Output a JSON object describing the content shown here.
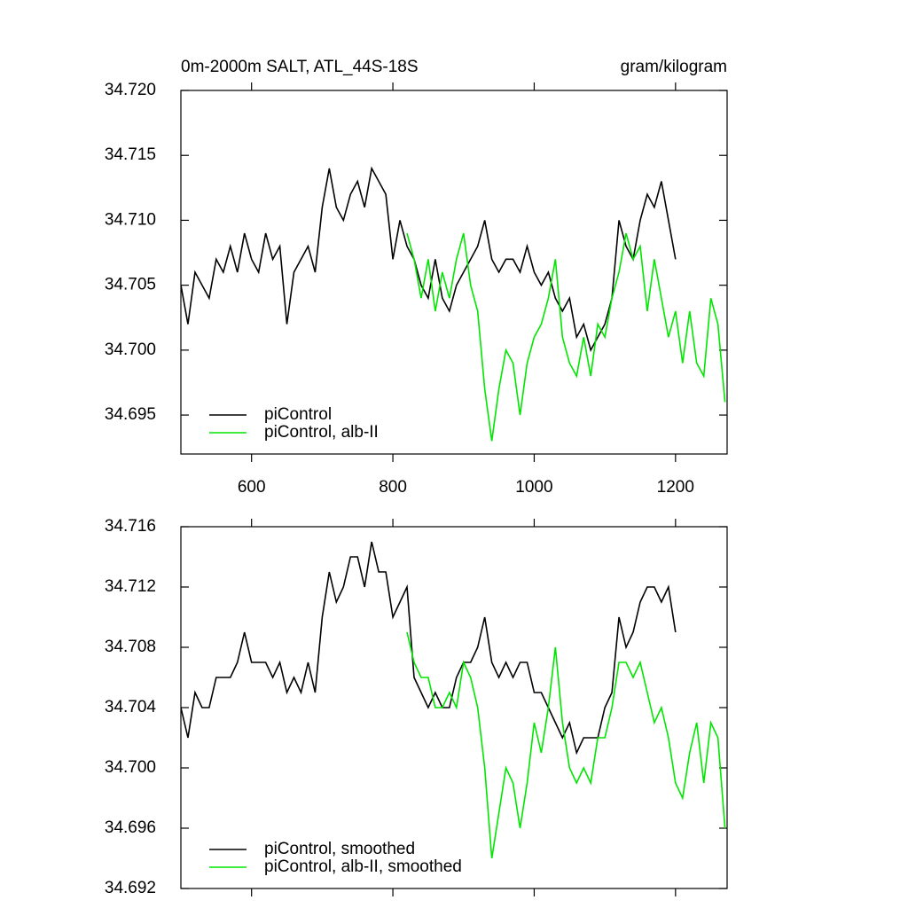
{
  "chart_data": [
    {
      "type": "line",
      "title": "0m-2000m SALT, ATL_44S-18S",
      "units": "gram/kilogram",
      "x": [
        500,
        510,
        520,
        530,
        540,
        550,
        560,
        570,
        580,
        590,
        600,
        610,
        620,
        630,
        640,
        650,
        660,
        670,
        680,
        690,
        700,
        710,
        720,
        730,
        740,
        750,
        760,
        770,
        780,
        790,
        800,
        810,
        820,
        830,
        840,
        850,
        860,
        870,
        880,
        890,
        900,
        910,
        920,
        930,
        940,
        950,
        960,
        970,
        980,
        990,
        1000,
        1010,
        1020,
        1030,
        1040,
        1050,
        1060,
        1070,
        1080,
        1090,
        1100,
        1110,
        1120,
        1130,
        1140,
        1150,
        1160,
        1170,
        1180,
        1190,
        1200,
        1210,
        1220,
        1230,
        1240,
        1250,
        1260,
        1270
      ],
      "series": [
        {
          "name": "piControl",
          "color": "#000000",
          "values": [
            34.705,
            34.702,
            34.706,
            34.705,
            34.704,
            34.707,
            34.706,
            34.708,
            34.706,
            34.709,
            34.707,
            34.706,
            34.709,
            34.707,
            34.708,
            34.702,
            34.706,
            34.707,
            34.708,
            34.706,
            34.711,
            34.714,
            34.711,
            34.71,
            34.712,
            34.713,
            34.711,
            34.714,
            34.713,
            34.712,
            34.707,
            34.71,
            34.708,
            34.707,
            34.705,
            34.704,
            34.707,
            34.704,
            34.703,
            34.705,
            34.706,
            34.707,
            34.708,
            34.71,
            34.707,
            34.706,
            34.707,
            34.707,
            34.706,
            34.708,
            34.706,
            34.705,
            34.706,
            34.704,
            34.703,
            34.704,
            34.701,
            34.702,
            34.7,
            34.701,
            34.702,
            34.704,
            34.71,
            34.708,
            34.707,
            34.71,
            34.712,
            34.711,
            34.713,
            34.71,
            34.707,
            null,
            null,
            null,
            null,
            null,
            null,
            null
          ]
        },
        {
          "name": "piControl, alb-II",
          "color": "#00e600",
          "values": [
            null,
            null,
            null,
            null,
            null,
            null,
            null,
            null,
            null,
            null,
            null,
            null,
            null,
            null,
            null,
            null,
            null,
            null,
            null,
            null,
            null,
            null,
            null,
            null,
            null,
            null,
            null,
            null,
            null,
            null,
            null,
            null,
            34.709,
            34.707,
            34.704,
            34.707,
            34.703,
            34.706,
            34.704,
            34.707,
            34.709,
            34.705,
            34.703,
            34.697,
            34.693,
            34.697,
            34.7,
            34.699,
            34.695,
            34.699,
            34.701,
            34.702,
            34.704,
            34.707,
            34.701,
            34.699,
            34.698,
            34.701,
            34.698,
            34.702,
            34.701,
            34.704,
            34.706,
            34.709,
            34.707,
            34.708,
            34.703,
            34.707,
            34.704,
            34.701,
            34.703,
            34.699,
            34.703,
            34.699,
            34.698,
            34.704,
            34.702,
            34.696
          ]
        }
      ],
      "xlim": [
        500,
        1273
      ],
      "xticks": [
        600,
        800,
        1000,
        1200
      ],
      "xtick_labels": true,
      "ylim": [
        34.692,
        34.72
      ],
      "yticks": [
        {
          "value": 34.72,
          "label": "34.720"
        },
        34.715,
        {
          "value": 34.71,
          "label": "34.710"
        },
        34.705,
        {
          "value": 34.7,
          "label": "34.700"
        },
        34.695
      ],
      "legend": "lower left"
    },
    {
      "type": "line",
      "x": [
        500,
        510,
        520,
        530,
        540,
        550,
        560,
        570,
        580,
        590,
        600,
        610,
        620,
        630,
        640,
        650,
        660,
        670,
        680,
        690,
        700,
        710,
        720,
        730,
        740,
        750,
        760,
        770,
        780,
        790,
        800,
        810,
        820,
        830,
        840,
        850,
        860,
        870,
        880,
        890,
        900,
        910,
        920,
        930,
        940,
        950,
        960,
        970,
        980,
        990,
        1000,
        1010,
        1020,
        1030,
        1040,
        1050,
        1060,
        1070,
        1080,
        1090,
        1100,
        1110,
        1120,
        1130,
        1140,
        1150,
        1160,
        1170,
        1180,
        1190,
        1200,
        1210,
        1220,
        1230,
        1240,
        1250,
        1260,
        1270
      ],
      "series": [
        {
          "name": "piControl, smoothed",
          "color": "#000000",
          "values": [
            34.704,
            34.702,
            34.705,
            34.704,
            34.704,
            34.706,
            34.706,
            34.706,
            34.707,
            34.709,
            34.707,
            34.707,
            34.707,
            34.706,
            34.707,
            34.705,
            34.706,
            34.705,
            34.707,
            34.705,
            34.71,
            34.713,
            34.711,
            34.712,
            34.714,
            34.714,
            34.712,
            34.715,
            34.713,
            34.713,
            34.71,
            34.711,
            34.712,
            34.706,
            34.705,
            34.704,
            34.705,
            34.704,
            34.704,
            34.706,
            34.707,
            34.707,
            34.708,
            34.71,
            34.707,
            34.706,
            34.707,
            34.706,
            34.707,
            34.707,
            34.705,
            34.705,
            34.704,
            34.703,
            34.702,
            34.703,
            34.701,
            34.702,
            34.702,
            34.702,
            34.704,
            34.705,
            34.71,
            34.708,
            34.709,
            34.711,
            34.712,
            34.712,
            34.711,
            34.712,
            34.709,
            null,
            null,
            null,
            null,
            null,
            null,
            null
          ]
        },
        {
          "name": "piControl, alb-II, smoothed",
          "color": "#00e600",
          "values": [
            null,
            null,
            null,
            null,
            null,
            null,
            null,
            null,
            null,
            null,
            null,
            null,
            null,
            null,
            null,
            null,
            null,
            null,
            null,
            null,
            null,
            null,
            null,
            null,
            null,
            null,
            null,
            null,
            null,
            null,
            null,
            null,
            34.709,
            34.707,
            34.706,
            34.706,
            34.704,
            34.704,
            34.705,
            34.704,
            34.707,
            34.706,
            34.704,
            34.7,
            34.694,
            34.697,
            34.7,
            34.699,
            34.696,
            34.699,
            34.703,
            34.701,
            34.704,
            34.708,
            34.703,
            34.7,
            34.699,
            34.7,
            34.699,
            34.702,
            34.702,
            34.704,
            34.707,
            34.707,
            34.706,
            34.707,
            34.705,
            34.703,
            34.704,
            34.702,
            34.699,
            34.698,
            34.701,
            34.703,
            34.699,
            34.703,
            34.702,
            34.696
          ]
        }
      ],
      "xlim": [
        500,
        1273
      ],
      "xticks": [
        600,
        800,
        1000,
        1200
      ],
      "xtick_labels": false,
      "ylim": [
        34.692,
        34.716
      ],
      "yticks": [
        34.716,
        34.712,
        34.708,
        34.704,
        {
          "value": 34.7,
          "label": "34.700"
        },
        34.696,
        34.692
      ],
      "legend": "lower left"
    }
  ]
}
